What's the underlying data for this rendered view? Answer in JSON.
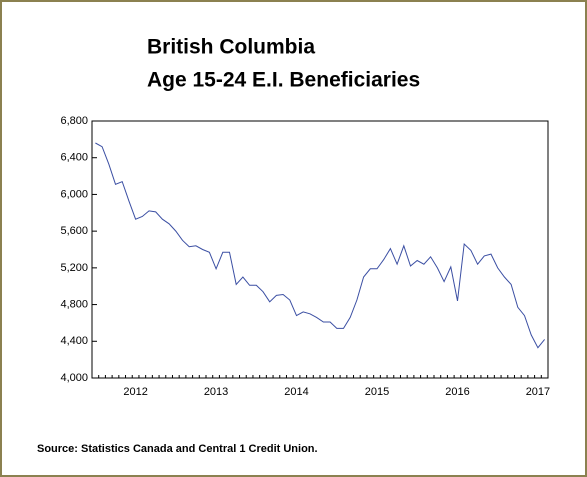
{
  "chart_data": {
    "type": "line",
    "title_lines": [
      "British Columbia",
      "Age 15-24 E.I. Beneficiaries"
    ],
    "source": "Source: Statistics Canada and Central 1 Credit Union.",
    "categories": [
      null,
      null,
      null,
      null,
      null,
      null,
      "2012",
      null,
      null,
      null,
      null,
      null,
      null,
      null,
      null,
      null,
      null,
      null,
      "2013",
      null,
      null,
      null,
      null,
      null,
      null,
      null,
      null,
      null,
      null,
      null,
      "2014",
      null,
      null,
      null,
      null,
      null,
      null,
      null,
      null,
      null,
      null,
      null,
      "2015",
      null,
      null,
      null,
      null,
      null,
      null,
      null,
      null,
      null,
      null,
      null,
      "2016",
      null,
      null,
      null,
      null,
      null,
      null,
      null,
      null,
      null,
      null,
      null,
      "2017",
      null
    ],
    "series": [
      {
        "color": "#3b4fa3",
        "values": [
          6560,
          6520,
          6330,
          6110,
          6140,
          5930,
          5730,
          5760,
          5820,
          5810,
          5730,
          5680,
          5600,
          5500,
          5430,
          5440,
          5400,
          5370,
          5190,
          5370,
          5370,
          5020,
          5100,
          5010,
          5010,
          4940,
          4830,
          4900,
          4910,
          4850,
          4680,
          4720,
          4700,
          4660,
          4610,
          4610,
          4540,
          4540,
          4660,
          4850,
          5100,
          5190,
          5190,
          5290,
          5410,
          5240,
          5440,
          5220,
          5280,
          5240,
          5320,
          5200,
          5050,
          5210,
          4840,
          5460,
          5390,
          5240,
          5330,
          5350,
          5200,
          5100,
          5020,
          4770,
          4680,
          4470,
          4330,
          4420
        ]
      }
    ],
    "ylim": [
      4000,
      6800
    ],
    "yticks": [
      {
        "value": 4000,
        "label": "4,000"
      },
      {
        "value": 4400,
        "label": "4,400"
      },
      {
        "value": 4800,
        "label": "4,800"
      },
      {
        "value": 5200,
        "label": "5,200"
      },
      {
        "value": 5600,
        "label": "5,600"
      },
      {
        "value": 6000,
        "label": "6,000"
      },
      {
        "value": 6400,
        "label": "6,400"
      },
      {
        "value": 6800,
        "label": "6,800"
      }
    ],
    "grid": false
  }
}
